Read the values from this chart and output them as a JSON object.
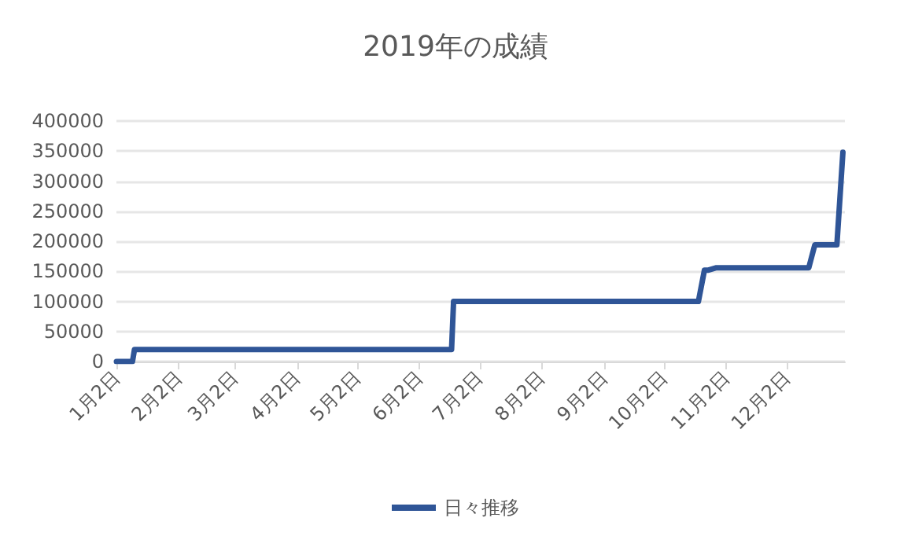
{
  "chart_data": {
    "type": "line",
    "title": "2019年の成績",
    "x": [
      "2019-01-02",
      "2019-01-10",
      "2019-01-11",
      "2019-06-18",
      "2019-06-19",
      "2019-10-19",
      "2019-10-22",
      "2019-10-24",
      "2019-10-28",
      "2019-12-13",
      "2019-12-16",
      "2019-12-27",
      "2019-12-30"
    ],
    "series": [
      {
        "name": "日々推移",
        "color": "#2f5597",
        "values": [
          0,
          0,
          20000,
          20000,
          100000,
          100000,
          152000,
          152000,
          156000,
          156000,
          194000,
          194000,
          348000
        ]
      }
    ],
    "xlim": [
      "2019-01-02",
      "2019-12-31"
    ],
    "xticks": [
      {
        "value": "2019-01-02",
        "label": "1月2日"
      },
      {
        "value": "2019-02-02",
        "label": "2月2日"
      },
      {
        "value": "2019-03-02",
        "label": "3月2日"
      },
      {
        "value": "2019-04-02",
        "label": "4月2日"
      },
      {
        "value": "2019-05-02",
        "label": "5月2日"
      },
      {
        "value": "2019-06-02",
        "label": "6月2日"
      },
      {
        "value": "2019-07-02",
        "label": "7月2日"
      },
      {
        "value": "2019-08-02",
        "label": "8月2日"
      },
      {
        "value": "2019-09-02",
        "label": "9月2日"
      },
      {
        "value": "2019-10-02",
        "label": "10月2日"
      },
      {
        "value": "2019-11-02",
        "label": "11月2日"
      },
      {
        "value": "2019-12-02",
        "label": "12月2日"
      }
    ],
    "ylim": [
      0,
      400000
    ],
    "yticks": [
      0,
      50000,
      100000,
      150000,
      200000,
      250000,
      300000,
      350000,
      400000
    ],
    "grid": "y",
    "legend": "bottom",
    "marker": "none",
    "line_style": "solid"
  }
}
